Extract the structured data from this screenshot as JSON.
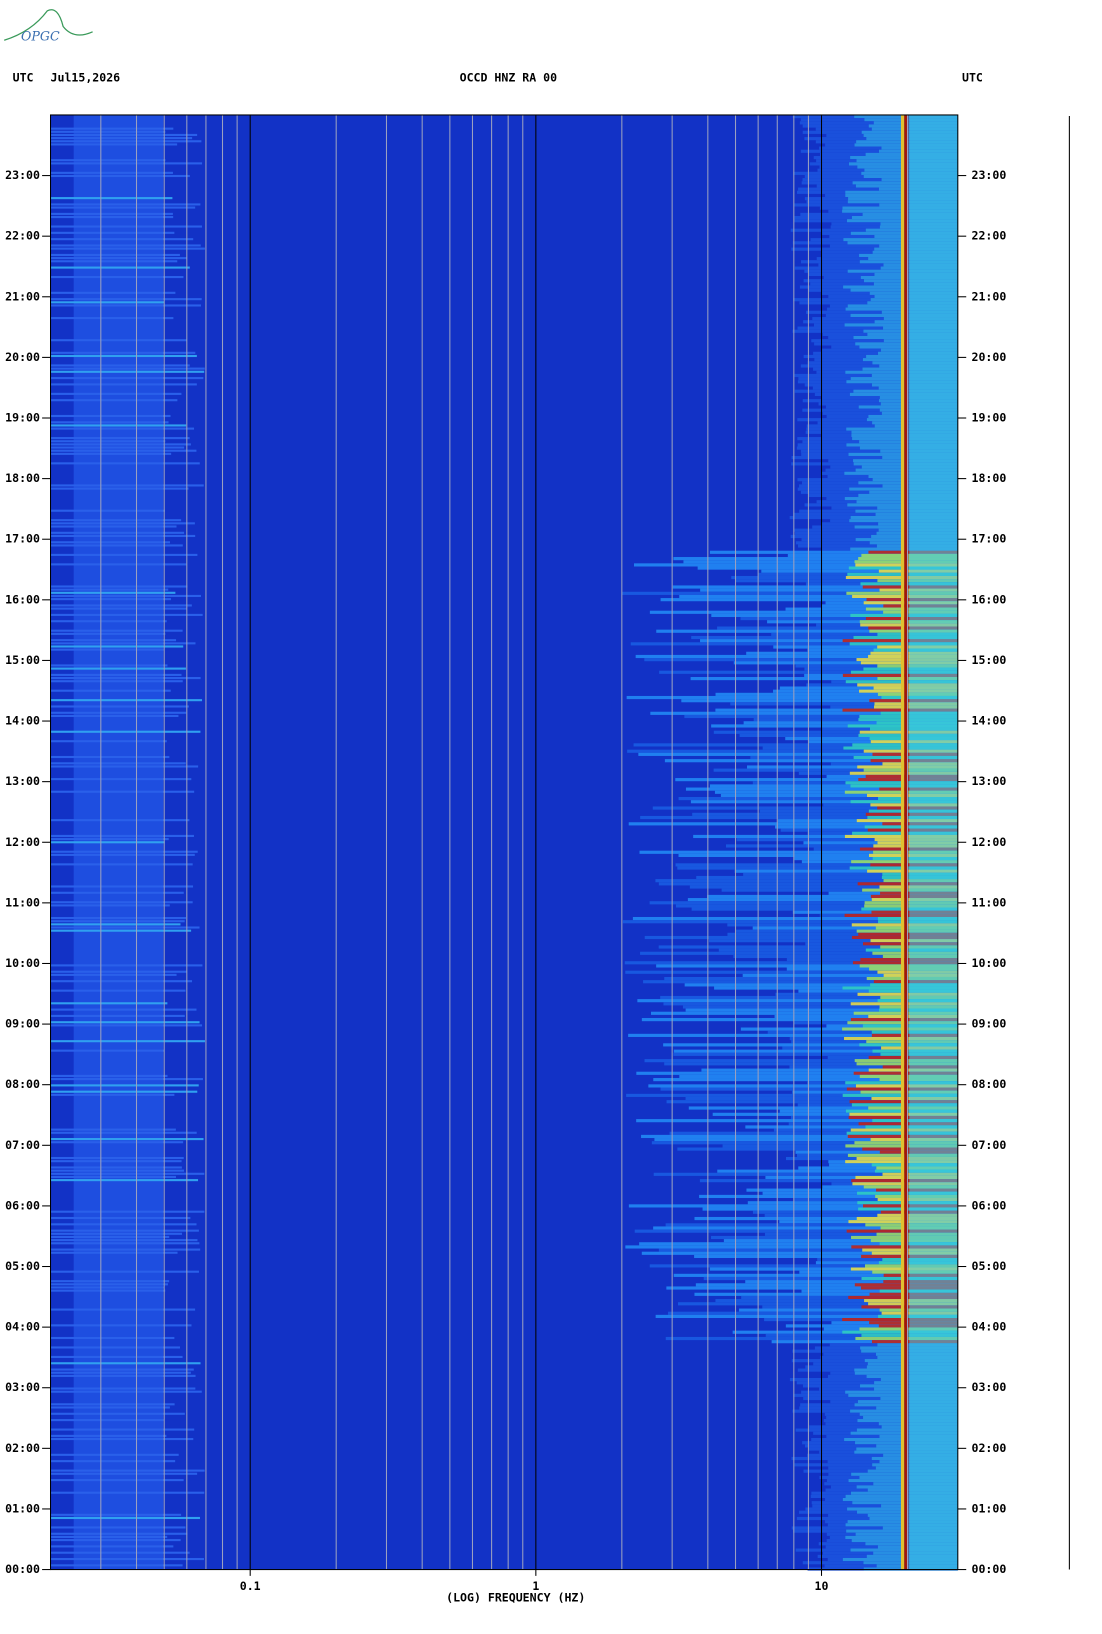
{
  "logo": "OPGC",
  "chart_data": {
    "type": "spectrogram",
    "title": "OCCD HNZ RA 00",
    "date": "Jul15,2026",
    "left_axis_title": "UTC",
    "right_axis_title": "UTC",
    "xlabel": "(LOG) FREQUENCY (HZ)",
    "xscale": "log",
    "xlim": [
      0.02,
      30
    ],
    "xticks": [
      0.1,
      1,
      10
    ],
    "minor_xticks": [
      0.03,
      0.04,
      0.05,
      0.06,
      0.07,
      0.08,
      0.09,
      0.2,
      0.3,
      0.4,
      0.5,
      0.6,
      0.7,
      0.8,
      0.9,
      2,
      3,
      4,
      5,
      6,
      7,
      8,
      9,
      20
    ],
    "ylim": [
      0,
      24
    ],
    "yticks": [
      {
        "value": 0,
        "label": "00:00"
      },
      {
        "value": 1,
        "label": "01:00"
      },
      {
        "value": 2,
        "label": "02:00"
      },
      {
        "value": 3,
        "label": "03:00"
      },
      {
        "value": 4,
        "label": "04:00"
      },
      {
        "value": 5,
        "label": "05:00"
      },
      {
        "value": 6,
        "label": "06:00"
      },
      {
        "value": 7,
        "label": "07:00"
      },
      {
        "value": 8,
        "label": "08:00"
      },
      {
        "value": 9,
        "label": "09:00"
      },
      {
        "value": 10,
        "label": "10:00"
      },
      {
        "value": 11,
        "label": "11:00"
      },
      {
        "value": 12,
        "label": "12:00"
      },
      {
        "value": 13,
        "label": "13:00"
      },
      {
        "value": 14,
        "label": "14:00"
      },
      {
        "value": 15,
        "label": "15:00"
      },
      {
        "value": 16,
        "label": "16:00"
      },
      {
        "value": 17,
        "label": "17:00"
      },
      {
        "value": 18,
        "label": "18:00"
      },
      {
        "value": 19,
        "label": "19:00"
      },
      {
        "value": 20,
        "label": "20:00"
      },
      {
        "value": 21,
        "label": "21:00"
      },
      {
        "value": 22,
        "label": "22:00"
      },
      {
        "value": 23,
        "label": "23:00"
      }
    ]
  }
}
